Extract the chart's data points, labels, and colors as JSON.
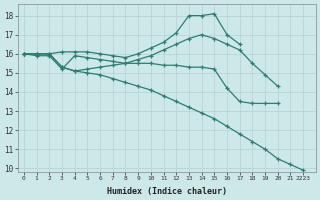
{
  "background_color": "#cde8e8",
  "grid_color": "#b8d4d4",
  "line_color": "#2e7d6e",
  "xlabel": "Humidex (Indice chaleur)",
  "xlim": [
    -0.5,
    23
  ],
  "ylim": [
    9.8,
    18.6
  ],
  "yticks": [
    10,
    11,
    12,
    13,
    14,
    15,
    16,
    17,
    18
  ],
  "xtick_labels": [
    "0",
    "1",
    "2",
    "3",
    "4",
    "5",
    "6",
    "7",
    "8",
    "9",
    "10",
    "11",
    "12",
    "13",
    "14",
    "15",
    "16",
    "17",
    "18",
    "19",
    "20",
    "21",
    "2223"
  ],
  "xtick_positions": [
    0,
    1,
    2,
    3,
    4,
    5,
    6,
    7,
    8,
    9,
    10,
    11,
    12,
    13,
    14,
    15,
    16,
    17,
    18,
    19,
    20,
    21,
    22
  ],
  "series": [
    {
      "x": [
        0,
        1,
        2,
        3,
        4,
        5,
        6,
        7,
        8,
        9,
        10,
        11,
        12,
        13,
        14,
        15,
        16,
        17,
        18,
        19,
        20,
        21,
        22
      ],
      "y": [
        16.0,
        15.9,
        15.9,
        15.2,
        15.9,
        15.8,
        15.7,
        15.6,
        15.5,
        15.5,
        15.5,
        15.4,
        15.4,
        15.3,
        15.3,
        15.2,
        14.2,
        13.5,
        13.4,
        13.4,
        13.4,
        null,
        null
      ]
    },
    {
      "x": [
        0,
        1,
        2,
        3,
        4,
        5,
        6,
        7,
        8,
        9,
        10,
        11,
        12,
        13,
        14,
        15,
        16,
        17
      ],
      "y": [
        16.0,
        16.0,
        16.0,
        16.1,
        16.1,
        16.1,
        16.0,
        15.9,
        15.8,
        16.0,
        16.3,
        16.6,
        17.1,
        18.0,
        18.0,
        18.1,
        17.0,
        16.5
      ]
    },
    {
      "x": [
        0,
        1,
        2,
        3,
        4,
        5,
        6,
        7,
        8,
        9,
        10,
        11,
        12,
        13,
        14,
        15,
        16,
        17,
        18,
        19,
        20
      ],
      "y": [
        16.0,
        16.0,
        16.0,
        15.3,
        15.1,
        15.2,
        15.3,
        15.4,
        15.5,
        15.7,
        15.9,
        16.2,
        16.5,
        16.8,
        17.0,
        16.8,
        16.5,
        16.2,
        15.5,
        14.9,
        14.3
      ]
    },
    {
      "x": [
        0,
        1,
        2,
        3,
        4,
        5,
        6,
        7,
        8,
        9,
        10,
        11,
        12,
        13,
        14,
        15,
        16,
        17,
        18,
        19,
        20,
        21,
        22
      ],
      "y": [
        16.0,
        16.0,
        16.0,
        15.3,
        15.1,
        15.0,
        14.9,
        14.7,
        14.5,
        14.3,
        14.1,
        13.8,
        13.5,
        13.2,
        12.9,
        12.6,
        12.2,
        11.8,
        11.4,
        11.0,
        10.5,
        10.2,
        9.9
      ]
    }
  ]
}
